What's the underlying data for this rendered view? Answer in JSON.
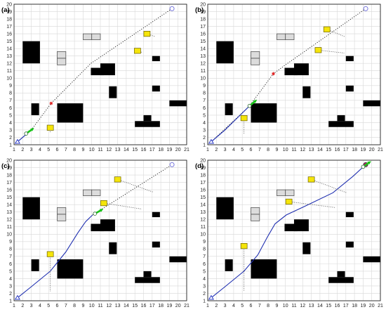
{
  "axis": {
    "x_ticks": [
      "1",
      "2",
      "3",
      "4",
      "5",
      "6",
      "7",
      "8",
      "9",
      "10",
      "11",
      "12",
      "13",
      "14",
      "15",
      "16",
      "17",
      "18",
      "19",
      "20",
      "21"
    ],
    "y_ticks": [
      "1",
      "2",
      "3",
      "4",
      "5",
      "6",
      "7",
      "8",
      "9",
      "10",
      "11",
      "12",
      "13",
      "14",
      "15",
      "16",
      "17",
      "18",
      "19",
      "20"
    ],
    "xlim": [
      1,
      21
    ],
    "ylim": [
      1,
      20
    ],
    "grid": true
  },
  "colors": {
    "obstacle": "#000000",
    "gray_obstacle": "#dcdcdc",
    "gray_obstacle_edge": "#555555",
    "moving_obstacle": "#f5e50a",
    "moving_obstacle_edge": "#6b6000",
    "planned_path": "#1a1a1a",
    "traveled_path": "#1f2fb0",
    "robot": "#18c418",
    "start": "#3040c8",
    "goal": "#6a6ad8",
    "goal_reached": "#c01870",
    "subgoal": "#e02020",
    "grid": "#d8d8d8"
  },
  "environment": {
    "static_obstacles": [
      {
        "x1": 2,
        "y1": 12,
        "x2": 4,
        "y2": 15
      },
      {
        "x1": 3,
        "y1": 5,
        "x2": 3.9,
        "y2": 6.6
      },
      {
        "x1": 6,
        "y1": 4,
        "x2": 9,
        "y2": 6.6
      },
      {
        "x1": 9.9,
        "y1": 10.4,
        "x2": 11.4,
        "y2": 11.4
      },
      {
        "x1": 11,
        "y1": 10.4,
        "x2": 12.7,
        "y2": 12
      },
      {
        "x1": 12,
        "y1": 7.3,
        "x2": 12.9,
        "y2": 8.9
      },
      {
        "x1": 17,
        "y1": 12.3,
        "x2": 17.9,
        "y2": 13
      },
      {
        "x1": 17,
        "y1": 8.2,
        "x2": 17.9,
        "y2": 9
      },
      {
        "x1": 19,
        "y1": 6.2,
        "x2": 21,
        "y2": 7
      },
      {
        "x1": 15,
        "y1": 3.4,
        "x2": 17.9,
        "y2": 4.2
      },
      {
        "x1": 16,
        "y1": 4.2,
        "x2": 16.9,
        "y2": 5
      }
    ],
    "gray_obstacles": [
      {
        "x1": 9,
        "y1": 15.2,
        "x2": 10,
        "y2": 16
      },
      {
        "x1": 10,
        "y1": 15.2,
        "x2": 11,
        "y2": 16
      },
      {
        "x1": 6,
        "y1": 11.8,
        "x2": 7,
        "y2": 12.7
      },
      {
        "x1": 6,
        "y1": 12.7,
        "x2": 7,
        "y2": 13.6
      }
    ],
    "start": {
      "x": 1.4,
      "y": 1.4
    },
    "goal": {
      "x": 19.3,
      "y": 19.4
    }
  },
  "panels": [
    {
      "label": "(a)",
      "goal_reached": false,
      "robot": {
        "x": 3.0,
        "y": 3.0,
        "angle": 35
      },
      "subgoal": {
        "x": 5.3,
        "y": 6.6
      },
      "planned_path": [
        [
          1.4,
          1.4
        ],
        [
          3.0,
          3.0
        ],
        [
          5.3,
          6.6
        ],
        [
          9.9,
          12.0
        ],
        [
          19.3,
          19.4
        ]
      ],
      "traveled_path": [
        [
          1.4,
          1.4
        ],
        [
          3.0,
          3.0
        ]
      ],
      "moving_obstacles": [
        {
          "x": 5.2,
          "y": 3.3,
          "trail": [
            [
              5.2,
              3.3
            ],
            [
              5.2,
              2.6
            ]
          ]
        },
        {
          "x": 15.3,
          "y": 13.7,
          "trail": [
            [
              15.3,
              13.7
            ],
            [
              15.8,
              13.5
            ]
          ]
        },
        {
          "x": 16.4,
          "y": 16.0,
          "trail": [
            [
              16.4,
              16.0
            ],
            [
              17.4,
              15.6
            ]
          ]
        }
      ]
    },
    {
      "label": "(b)",
      "goal_reached": false,
      "robot": {
        "x": 6.4,
        "y": 6.8,
        "angle": 40
      },
      "subgoal": {
        "x": 8.6,
        "y": 10.6
      },
      "planned_path": [
        [
          1.4,
          1.4
        ],
        [
          5.8,
          6.2
        ],
        [
          8.6,
          10.6
        ],
        [
          10.0,
          11.8
        ],
        [
          19.3,
          19.4
        ]
      ],
      "traveled_path": [
        [
          1.4,
          1.4
        ],
        [
          3.0,
          3.0
        ],
        [
          4.4,
          4.6
        ],
        [
          5.8,
          6.2
        ]
      ],
      "moving_obstacles": [
        {
          "x": 5.2,
          "y": 4.6,
          "trail": [
            [
              5.2,
              4.6
            ],
            [
              5.2,
              2.4
            ]
          ]
        },
        {
          "x": 13.8,
          "y": 13.8,
          "trail": [
            [
              13.8,
              13.8
            ],
            [
              16.8,
              13.4
            ]
          ]
        },
        {
          "x": 14.8,
          "y": 16.6,
          "trail": [
            [
              14.8,
              16.6
            ],
            [
              16.9,
              15.6
            ]
          ]
        }
      ]
    },
    {
      "label": "(c)",
      "goal_reached": false,
      "robot": {
        "x": 11.0,
        "y": 13.2,
        "angle": 30
      },
      "subgoal": null,
      "planned_path": [
        [
          10.1,
          12.6
        ],
        [
          19.3,
          19.4
        ]
      ],
      "traveled_path": [
        [
          1.4,
          1.4
        ],
        [
          3.0,
          2.9
        ],
        [
          5.2,
          5.0
        ],
        [
          7.0,
          7.6
        ],
        [
          8.4,
          10.2
        ],
        [
          9.3,
          11.7
        ],
        [
          10.1,
          12.6
        ]
      ],
      "moving_obstacles": [
        {
          "x": 5.2,
          "y": 7.3,
          "trail": [
            [
              5.2,
              7.3
            ],
            [
              5.2,
              2.3
            ]
          ]
        },
        {
          "x": 11.4,
          "y": 14.2,
          "trail": [
            [
              11.4,
              14.2
            ],
            [
              15.8,
              13.4
            ]
          ]
        },
        {
          "x": 13.0,
          "y": 17.4,
          "trail": [
            [
              13.0,
              17.4
            ],
            [
              17.1,
              15.7
            ]
          ]
        }
      ]
    },
    {
      "label": "(d)",
      "goal_reached": true,
      "robot": {
        "x": 19.6,
        "y": 19.6,
        "angle": 35
      },
      "subgoal": null,
      "planned_path": [],
      "traveled_path": [
        [
          1.4,
          1.4
        ],
        [
          3.0,
          2.9
        ],
        [
          5.2,
          5.0
        ],
        [
          6.8,
          7.2
        ],
        [
          7.9,
          9.6
        ],
        [
          8.8,
          11.4
        ],
        [
          10.1,
          12.6
        ],
        [
          12.3,
          13.8
        ],
        [
          15.5,
          15.6
        ],
        [
          17.8,
          17.8
        ],
        [
          19.3,
          19.4
        ]
      ],
      "moving_obstacles": [
        {
          "x": 5.2,
          "y": 8.4,
          "trail": [
            [
              5.2,
              8.4
            ],
            [
              5.2,
              2.3
            ]
          ]
        },
        {
          "x": 10.4,
          "y": 14.4,
          "trail": [
            [
              10.4,
              14.4
            ],
            [
              15.8,
              13.6
            ]
          ]
        },
        {
          "x": 13.0,
          "y": 17.4,
          "trail": [
            [
              13.0,
              17.4
            ],
            [
              17.1,
              15.6
            ]
          ]
        }
      ]
    }
  ]
}
